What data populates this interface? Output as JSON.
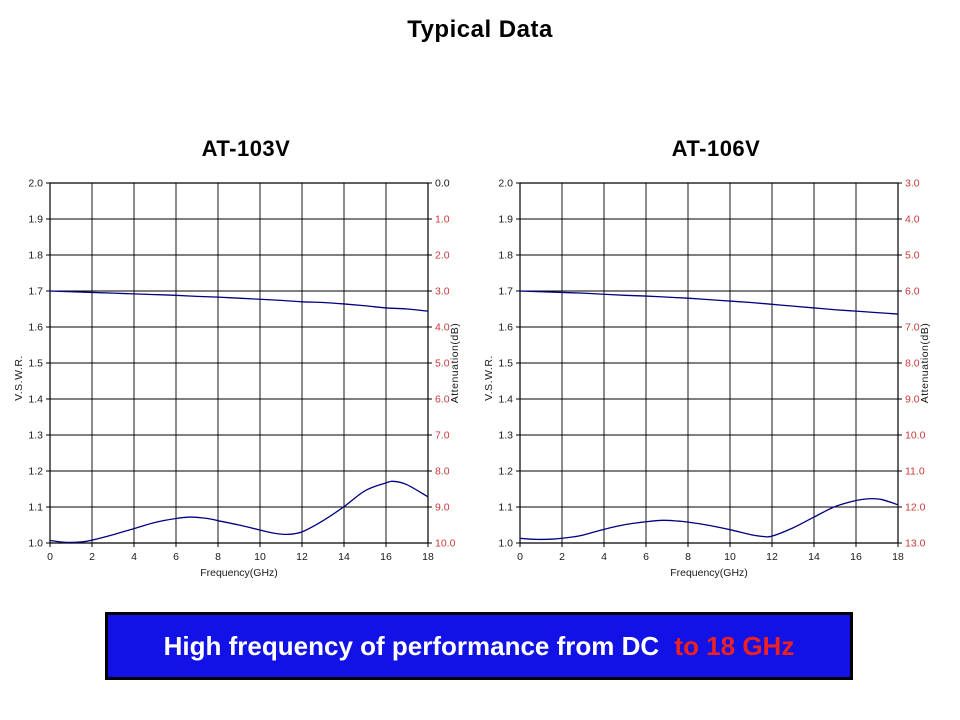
{
  "title": "Typical Data",
  "banner": {
    "text_white": "High frequency of performance from DC",
    "text_red": "to 18 GHz",
    "bg_color": "#1212e6",
    "red_color": "#ee2020",
    "white_color": "#ffffff"
  },
  "colors": {
    "curve": "#000080",
    "grid": "#000000",
    "tick_black": "#1a1a1a",
    "tick_red": "#cc3838"
  },
  "chart_data": [
    {
      "type": "line",
      "title": "AT-103V",
      "xlabel": "Frequency(GHz)",
      "x_range": [
        0,
        18
      ],
      "x_ticks": [
        "0",
        "2",
        "4",
        "6",
        "8",
        "10",
        "12",
        "14",
        "16",
        "18"
      ],
      "grid": true,
      "left_axis": {
        "label": "V.S.W.R.",
        "range": [
          1.0,
          2.0
        ],
        "ticks": [
          "2.0",
          "1.9",
          "1.8",
          "1.7",
          "1.6",
          "1.5",
          "1.4",
          "1.3",
          "1.2",
          "1.1",
          "1.0"
        ],
        "color": "#1a1a1a"
      },
      "right_axis": {
        "label": "Attenuation(dB)",
        "range": [
          0.0,
          10.0
        ],
        "ticks": [
          "0.0",
          "1.0",
          "2.0",
          "3.0",
          "4.0",
          "5.0",
          "6.0",
          "7.0",
          "8.0",
          "9.0",
          "10.0"
        ],
        "color": "#cc3838",
        "first_tick_black": true
      },
      "series": [
        {
          "name": "Attenuation",
          "axis": "right",
          "color": "#000080",
          "points": [
            [
              0,
              3.0
            ],
            [
              1,
              3.02
            ],
            [
              2,
              3.04
            ],
            [
              3,
              3.06
            ],
            [
              4,
              3.08
            ],
            [
              5,
              3.1
            ],
            [
              6,
              3.12
            ],
            [
              7,
              3.15
            ],
            [
              8,
              3.17
            ],
            [
              9,
              3.2
            ],
            [
              10,
              3.23
            ],
            [
              11,
              3.26
            ],
            [
              12,
              3.3
            ],
            [
              13,
              3.32
            ],
            [
              14,
              3.36
            ],
            [
              15,
              3.41
            ],
            [
              16,
              3.47
            ],
            [
              17,
              3.5
            ],
            [
              18,
              3.56
            ]
          ]
        },
        {
          "name": "V.S.W.R.",
          "axis": "left",
          "color": "#000080",
          "points": [
            [
              0,
              1.007
            ],
            [
              0.7,
              1.002
            ],
            [
              1.5,
              1.003
            ],
            [
              2,
              1.008
            ],
            [
              3,
              1.023
            ],
            [
              4,
              1.04
            ],
            [
              5,
              1.057
            ],
            [
              6,
              1.068
            ],
            [
              6.7,
              1.072
            ],
            [
              7.5,
              1.068
            ],
            [
              8,
              1.062
            ],
            [
              9,
              1.05
            ],
            [
              10,
              1.036
            ],
            [
              10.7,
              1.027
            ],
            [
              11.3,
              1.024
            ],
            [
              12,
              1.031
            ],
            [
              13,
              1.062
            ],
            [
              14,
              1.101
            ],
            [
              15,
              1.145
            ],
            [
              16,
              1.167
            ],
            [
              16.4,
              1.171
            ],
            [
              17,
              1.162
            ],
            [
              18,
              1.128
            ]
          ]
        }
      ]
    },
    {
      "type": "line",
      "title": "AT-106V",
      "xlabel": "Frequency(GHz)",
      "x_range": [
        0,
        18
      ],
      "x_ticks": [
        "0",
        "2",
        "4",
        "6",
        "8",
        "10",
        "12",
        "14",
        "16",
        "18"
      ],
      "grid": true,
      "left_axis": {
        "label": "V.S.W.R.",
        "range": [
          1.0,
          2.0
        ],
        "ticks": [
          "2.0",
          "1.9",
          "1.8",
          "1.7",
          "1.6",
          "1.5",
          "1.4",
          "1.3",
          "1.2",
          "1.1",
          "1.0"
        ],
        "color": "#1a1a1a"
      },
      "right_axis": {
        "label": "Attenuation(dB)",
        "range": [
          3.0,
          13.0
        ],
        "ticks": [
          "3.0",
          "4.0",
          "5.0",
          "6.0",
          "7.0",
          "8.0",
          "9.0",
          "10.0",
          "11.0",
          "12.0",
          "13.0"
        ],
        "color": "#cc3838",
        "first_tick_black": false
      },
      "series": [
        {
          "name": "Attenuation",
          "axis": "right",
          "color": "#000080",
          "points": [
            [
              0,
              6.0
            ],
            [
              1,
              6.02
            ],
            [
              2,
              6.04
            ],
            [
              3,
              6.06
            ],
            [
              4,
              6.09
            ],
            [
              5,
              6.12
            ],
            [
              6,
              6.14
            ],
            [
              7,
              6.17
            ],
            [
              8,
              6.2
            ],
            [
              9,
              6.24
            ],
            [
              10,
              6.28
            ],
            [
              11,
              6.32
            ],
            [
              12,
              6.37
            ],
            [
              13,
              6.42
            ],
            [
              14,
              6.47
            ],
            [
              15,
              6.52
            ],
            [
              16,
              6.56
            ],
            [
              17,
              6.6
            ],
            [
              18,
              6.64
            ]
          ]
        },
        {
          "name": "V.S.W.R.",
          "axis": "left",
          "color": "#000080",
          "points": [
            [
              0,
              1.013
            ],
            [
              0.8,
              1.01
            ],
            [
              1.6,
              1.011
            ],
            [
              2.4,
              1.016
            ],
            [
              3,
              1.022
            ],
            [
              4,
              1.038
            ],
            [
              5,
              1.051
            ],
            [
              6,
              1.059
            ],
            [
              6.8,
              1.063
            ],
            [
              7.5,
              1.061
            ],
            [
              8,
              1.058
            ],
            [
              9,
              1.049
            ],
            [
              10,
              1.037
            ],
            [
              11,
              1.023
            ],
            [
              11.6,
              1.018
            ],
            [
              12,
              1.019
            ],
            [
              13,
              1.042
            ],
            [
              14,
              1.072
            ],
            [
              15,
              1.101
            ],
            [
              16,
              1.118
            ],
            [
              16.6,
              1.123
            ],
            [
              17.2,
              1.121
            ],
            [
              18,
              1.106
            ]
          ]
        }
      ]
    }
  ]
}
